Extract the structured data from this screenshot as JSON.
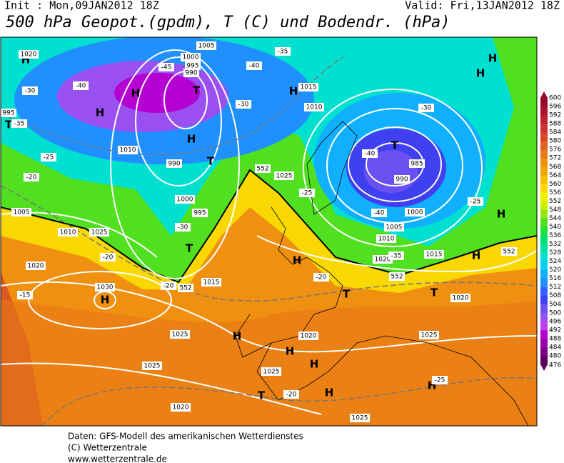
{
  "header": {
    "init": "Init : Mon,09JAN2012 18Z",
    "valid": "Valid: Fri,13JAN2012 18Z",
    "title": "500 hPa Geopot.(gpdm), T (C) und Bodendr. (hPa)"
  },
  "footer": {
    "lines": [
      "Daten: GFS-Modell des amerikanischen Wetterdienstes",
      "(C) Wetterzentrale",
      "www.wetterzentrale.de"
    ]
  },
  "colorbar": {
    "labels": [
      476,
      480,
      484,
      488,
      492,
      496,
      500,
      504,
      508,
      512,
      516,
      520,
      524,
      528,
      532,
      536,
      540,
      544,
      548,
      552,
      556,
      560,
      564,
      568,
      572,
      576,
      580,
      584,
      588,
      592,
      596,
      600
    ],
    "colors": [
      "#5c0060",
      "#7a0088",
      "#9b00b0",
      "#b400d0",
      "#c040e8",
      "#9a50f0",
      "#6a50f0",
      "#4040f0",
      "#3060ff",
      "#2090ff",
      "#10b0ff",
      "#00d0f0",
      "#00e0d0",
      "#00e0a0",
      "#00e070",
      "#20e040",
      "#50e020",
      "#90e810",
      "#c8f000",
      "#f0f000",
      "#f8d800",
      "#f8c000",
      "#f0a800",
      "#f09010",
      "#e87818",
      "#e06020",
      "#d84828",
      "#d03030",
      "#c02030",
      "#b01030",
      "#980828"
    ]
  },
  "map": {
    "pressure_centers": [
      "H",
      "H",
      "H",
      "H",
      "H",
      "H",
      "H",
      "H",
      "H",
      "H",
      "H",
      "H",
      "H",
      "H",
      "H",
      "H",
      "T",
      "T",
      "T",
      "T",
      "T",
      "T",
      "T",
      "T"
    ],
    "isobar_labels": [
      1020,
      1005,
      1000,
      995,
      990,
      1015,
      1010,
      995,
      990,
      1000,
      1005,
      1010,
      995,
      985,
      990,
      1000,
      1005,
      1010,
      1015,
      1020,
      1025,
      1030,
      1025,
      1025,
      1025,
      1020,
      1025,
      1020,
      1025,
      1020,
      1010,
      1025,
      1015,
      1020
    ],
    "temperature_labels": [
      -40,
      -45,
      -30,
      -35,
      -25,
      -40,
      -30,
      -35,
      -40,
      -25,
      -20,
      -30,
      -20,
      -15,
      -25,
      -30,
      -35,
      -20,
      -20,
      -20,
      -25,
      -40
    ],
    "contour_labels": [
      552,
      552,
      552,
      552
    ]
  }
}
